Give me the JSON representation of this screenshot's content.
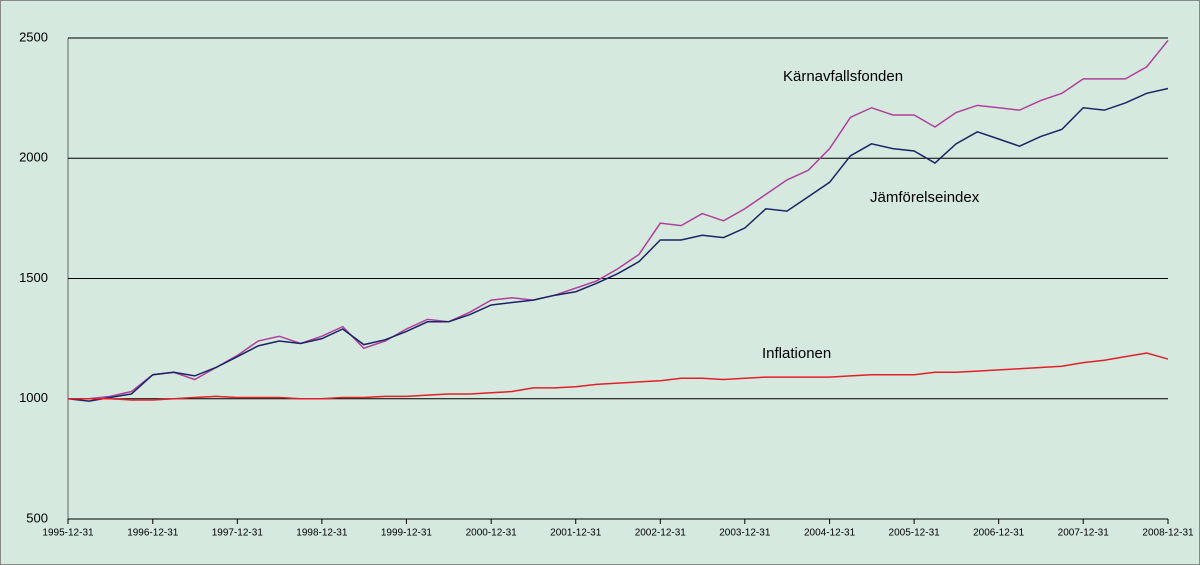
{
  "chart_data": {
    "type": "line",
    "x": [
      "1995-12-31",
      "1996-03-31",
      "1996-06-30",
      "1996-09-30",
      "1996-12-31",
      "1997-03-31",
      "1997-06-30",
      "1997-09-30",
      "1997-12-31",
      "1998-03-31",
      "1998-06-30",
      "1998-09-30",
      "1998-12-31",
      "1999-03-31",
      "1999-06-30",
      "1999-09-30",
      "1999-12-31",
      "2000-03-31",
      "2000-06-30",
      "2000-09-30",
      "2000-12-31",
      "2001-03-31",
      "2001-06-30",
      "2001-09-30",
      "2001-12-31",
      "2002-03-31",
      "2002-06-30",
      "2002-09-30",
      "2002-12-31",
      "2003-03-31",
      "2003-06-30",
      "2003-09-30",
      "2003-12-31",
      "2004-03-31",
      "2004-06-30",
      "2004-09-30",
      "2004-12-31",
      "2005-03-31",
      "2005-06-30",
      "2005-09-30",
      "2005-12-31",
      "2006-03-31",
      "2006-06-30",
      "2006-09-30",
      "2006-12-31",
      "2007-03-31",
      "2007-06-30",
      "2007-09-30",
      "2007-12-31",
      "2008-03-31",
      "2008-06-30",
      "2008-09-30",
      "2008-12-31"
    ],
    "series": [
      {
        "name": "Kärnavfallsfonden",
        "color": "#b0409a",
        "values": [
          1000,
          1000,
          1010,
          1030,
          1100,
          1110,
          1080,
          1130,
          1180,
          1240,
          1260,
          1230,
          1260,
          1300,
          1210,
          1240,
          1290,
          1330,
          1320,
          1360,
          1410,
          1420,
          1410,
          1430,
          1460,
          1490,
          1540,
          1600,
          1730,
          1720,
          1770,
          1740,
          1790,
          1850,
          1910,
          1950,
          2040,
          2170,
          2210,
          2180,
          2180,
          2130,
          2190,
          2220,
          2210,
          2200,
          2240,
          2270,
          2330,
          2330,
          2330,
          2380,
          2490
        ]
      },
      {
        "name": "Jämförelseindex",
        "color": "#1a2466",
        "values": [
          1000,
          990,
          1005,
          1020,
          1100,
          1110,
          1095,
          1130,
          1175,
          1220,
          1240,
          1230,
          1250,
          1290,
          1225,
          1245,
          1280,
          1320,
          1320,
          1350,
          1390,
          1400,
          1410,
          1430,
          1445,
          1480,
          1520,
          1570,
          1660,
          1660,
          1680,
          1670,
          1710,
          1790,
          1780,
          1840,
          1900,
          2010,
          2060,
          2040,
          2030,
          1980,
          2060,
          2110,
          2080,
          2050,
          2090,
          2120,
          2210,
          2200,
          2230,
          2270,
          2290
        ]
      },
      {
        "name": "Inflationen",
        "color": "#e0202a",
        "values": [
          1000,
          1000,
          1000,
          995,
          995,
          1000,
          1005,
          1010,
          1005,
          1005,
          1005,
          1000,
          1000,
          1005,
          1005,
          1010,
          1010,
          1015,
          1020,
          1020,
          1025,
          1030,
          1045,
          1045,
          1050,
          1060,
          1065,
          1070,
          1075,
          1085,
          1085,
          1080,
          1085,
          1090,
          1090,
          1090,
          1090,
          1095,
          1100,
          1100,
          1100,
          1110,
          1110,
          1115,
          1120,
          1125,
          1130,
          1135,
          1150,
          1160,
          1175,
          1190,
          1165
        ]
      }
    ],
    "xlim": [
      "1995-12-31",
      "2008-12-31"
    ],
    "xticks": [
      "1995-12-31",
      "1996-12-31",
      "1997-12-31",
      "1998-12-31",
      "1999-12-31",
      "2000-12-31",
      "2001-12-31",
      "2002-12-31",
      "2003-12-31",
      "2004-12-31",
      "2005-12-31",
      "2006-12-31",
      "2007-12-31",
      "2008-12-31"
    ],
    "ylim": [
      500,
      2500
    ],
    "yticks": [
      500,
      1000,
      1500,
      2000,
      2500
    ],
    "grid": true
  }
}
